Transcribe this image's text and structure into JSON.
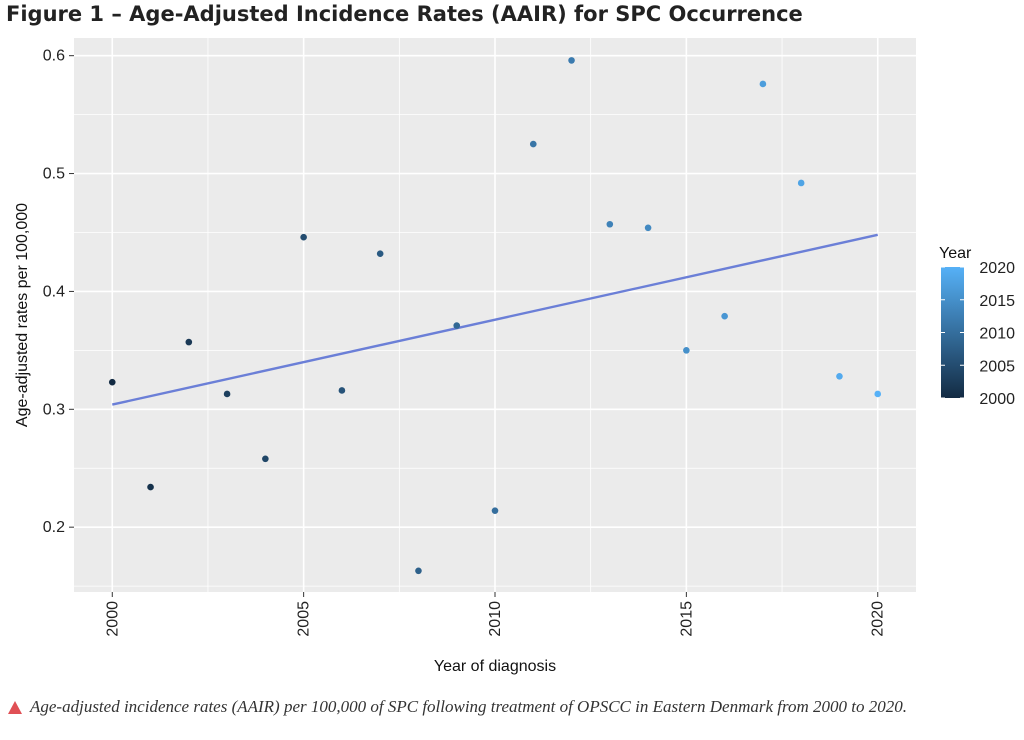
{
  "figure": {
    "title": "Figure 1 – Age-Adjusted Incidence Rates (AAIR) for SPC Occurrence",
    "caption": "Age-adjusted incidence rates (AAIR) per 100,000 of SPC following treatment of OPSCC in Eastern Denmark from 2000 to 2020."
  },
  "colors": {
    "panel_background": "#ebebeb",
    "grid": "#ffffff",
    "trend_line": "#6b7fd7",
    "legend_low": "#132b43",
    "legend_high": "#56b1f7",
    "caption_marker": "#e05055"
  },
  "chart_data": {
    "type": "scatter",
    "xlabel": "Year of diagnosis",
    "ylabel": "Age-adjusted rates per 100,000",
    "xlim": [
      1999,
      2021
    ],
    "ylim": [
      0.145,
      0.615
    ],
    "x_ticks": [
      2000,
      2005,
      2010,
      2015,
      2020
    ],
    "y_ticks": [
      0.2,
      0.3,
      0.4,
      0.5,
      0.6
    ],
    "y_tick_labels": [
      "0.2",
      "0.3",
      "0.4",
      "0.5",
      "0.6"
    ],
    "grid": true,
    "points": [
      {
        "x": 2000,
        "y": 0.323
      },
      {
        "x": 2001,
        "y": 0.234
      },
      {
        "x": 2002,
        "y": 0.357
      },
      {
        "x": 2003,
        "y": 0.313
      },
      {
        "x": 2004,
        "y": 0.258
      },
      {
        "x": 2005,
        "y": 0.446
      },
      {
        "x": 2006,
        "y": 0.316
      },
      {
        "x": 2007,
        "y": 0.432
      },
      {
        "x": 2008,
        "y": 0.163
      },
      {
        "x": 2009,
        "y": 0.371
      },
      {
        "x": 2010,
        "y": 0.214
      },
      {
        "x": 2011,
        "y": 0.525
      },
      {
        "x": 2012,
        "y": 0.596
      },
      {
        "x": 2013,
        "y": 0.457
      },
      {
        "x": 2014,
        "y": 0.454
      },
      {
        "x": 2015,
        "y": 0.35
      },
      {
        "x": 2016,
        "y": 0.379
      },
      {
        "x": 2017,
        "y": 0.576
      },
      {
        "x": 2018,
        "y": 0.492
      },
      {
        "x": 2019,
        "y": 0.328
      },
      {
        "x": 2020,
        "y": 0.313
      }
    ],
    "trend_line": {
      "x": [
        2000,
        2020
      ],
      "y": [
        0.304,
        0.448
      ]
    },
    "legend": {
      "title": "Year",
      "placement": "right",
      "min": 2000,
      "max": 2020,
      "ticks": [
        2000,
        2005,
        2010,
        2015,
        2020
      ]
    }
  }
}
